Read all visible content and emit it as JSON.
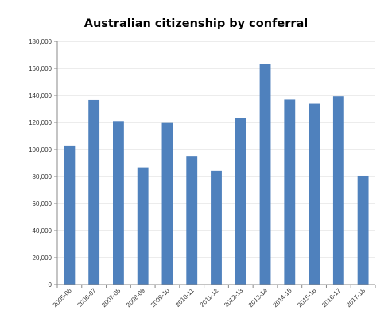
{
  "chart_data": {
    "type": "bar",
    "title": "Australian citizenship by conferral",
    "xlabel": "",
    "ylabel": "",
    "categories": [
      "2005-06",
      "2006-07",
      "2007-08",
      "2008-09",
      "2009-10",
      "2010-11",
      "2011-12",
      "2012-13",
      "2013-14",
      "2014-15",
      "2015-16",
      "2016-17",
      "2017-18"
    ],
    "values": [
      103000,
      136500,
      121000,
      86700,
      119600,
      95200,
      84200,
      123400,
      163000,
      136800,
      133800,
      139300,
      80600
    ],
    "ylim": [
      0,
      180000
    ],
    "y_ticks": [
      0,
      20000,
      40000,
      60000,
      80000,
      100000,
      120000,
      140000,
      160000,
      180000
    ],
    "y_tick_labels": [
      "0",
      "20,000",
      "40,000",
      "60,000",
      "80,000",
      "100,000",
      "120,000",
      "140,000",
      "160,000",
      "180,000"
    ],
    "bar_color": "#4F81BD",
    "grid": true,
    "legend": "none"
  }
}
